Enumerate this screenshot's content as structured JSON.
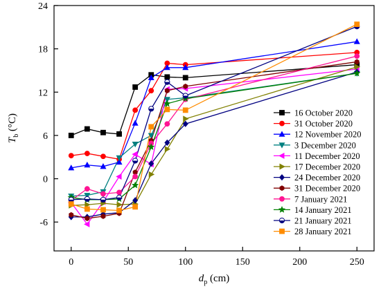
{
  "chart_data": {
    "type": "line",
    "title": "",
    "xlabel": {
      "main": "d",
      "sub": "p",
      "unit": " (cm)"
    },
    "ylabel": {
      "main": "T",
      "sub": "b",
      "unit": " (°C)"
    },
    "xlim": [
      -15,
      265
    ],
    "ylim": [
      -10,
      24
    ],
    "xticks": [
      0,
      50,
      100,
      150,
      200,
      250
    ],
    "yticks": [
      -6,
      0,
      6,
      12,
      18,
      24
    ],
    "legend_position": "right",
    "x": [
      0,
      14,
      28,
      42,
      56,
      70,
      84,
      100,
      250
    ],
    "series": [
      {
        "name": "16 October 2020",
        "color": "#000000",
        "marker": "square",
        "values": [
          6.0,
          6.9,
          6.4,
          6.2,
          12.7,
          14.4,
          14.1,
          14.0,
          15.8
        ]
      },
      {
        "name": "31 October 2020",
        "color": "#ff0000",
        "marker": "circle",
        "values": [
          3.2,
          3.5,
          3.1,
          2.7,
          9.5,
          12.2,
          16.0,
          15.8,
          17.5
        ]
      },
      {
        "name": "12 November 2020",
        "color": "#0000ff",
        "marker": "triangle-up",
        "values": [
          1.5,
          1.9,
          1.7,
          2.3,
          7.7,
          14.0,
          15.4,
          15.4,
          19.0
        ]
      },
      {
        "name": "3 December 2020",
        "color": "#008080",
        "marker": "triangle-down",
        "values": [
          -2.4,
          -2.3,
          -1.8,
          2.9,
          4.8,
          6.0,
          11.0,
          11.2,
          14.6
        ]
      },
      {
        "name": "11 December 2020",
        "color": "#ff00ff",
        "marker": "triangle-left",
        "values": [
          -3.3,
          -6.3,
          -3.2,
          0.3,
          3.4,
          2.0,
          12.4,
          12.5,
          15.2
        ]
      },
      {
        "name": "17 December 2020",
        "color": "#808000",
        "marker": "triangle-right",
        "values": [
          -3.7,
          -3.6,
          -3.4,
          -3.6,
          -3.5,
          0.6,
          4.1,
          8.3,
          15.5
        ]
      },
      {
        "name": "24 December 2020",
        "color": "#000080",
        "marker": "diamond",
        "values": [
          -5.3,
          -5.3,
          -4.9,
          -4.7,
          -3.0,
          2.1,
          5.0,
          7.6,
          14.8
        ]
      },
      {
        "name": "31 December 2020",
        "color": "#800000",
        "marker": "hexagon",
        "values": [
          -5.0,
          -5.5,
          -5.2,
          -4.8,
          0.9,
          5.3,
          12.2,
          12.8,
          16.2
        ]
      },
      {
        "name": "7 January 2021",
        "color": "#ff1493",
        "marker": "circle",
        "values": [
          -3.0,
          -1.4,
          -2.1,
          -1.9,
          0.3,
          4.9,
          7.6,
          11.0,
          17.0
        ]
      },
      {
        "name": "14 January 2021",
        "color": "#008000",
        "marker": "star",
        "values": [
          -2.6,
          -2.9,
          -2.9,
          -2.8,
          -0.9,
          4.4,
          10.4,
          11.1,
          14.6
        ]
      },
      {
        "name": "21 January 2021",
        "color": "#000080",
        "marker": "half-circle",
        "values": [
          -2.9,
          -2.8,
          -2.9,
          -2.6,
          2.5,
          9.7,
          13.4,
          11.5,
          21.1
        ]
      },
      {
        "name": "28 January 2021",
        "color": "#ff8c00",
        "marker": "square",
        "values": [
          -3.5,
          -4.2,
          -4.3,
          -4.4,
          -3.9,
          7.2,
          9.6,
          9.5,
          21.4
        ]
      }
    ]
  }
}
